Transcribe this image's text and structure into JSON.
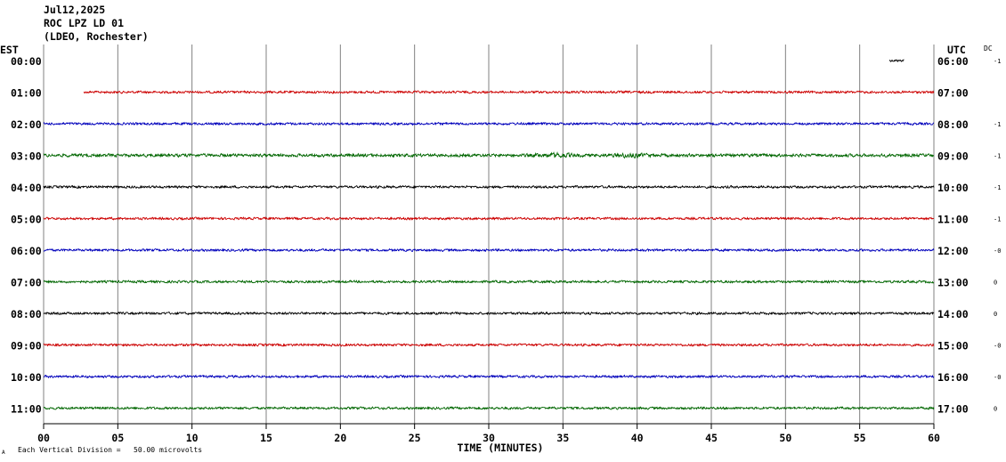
{
  "header": {
    "date": "Jul12,2025",
    "station": "ROC LPZ LD 01",
    "network": "(LDEO, Rochester)"
  },
  "left_timezone": "EST",
  "right_timezone": "UTC",
  "dc_label": "DC",
  "footer": {
    "corner_mark": "A",
    "scale_note": "Each Vertical Division =   50.00 microvolts"
  },
  "colors": {
    "trace_cycle": [
      "#000000",
      "#cc0000",
      "#0000bb",
      "#006600"
    ],
    "grid": "#808080",
    "text": "#000000"
  },
  "chart_data": {
    "type": "line",
    "xlabel": "TIME (MINUTES)",
    "xlim": [
      0,
      60
    ],
    "x_ticks": [
      "00",
      "05",
      "10",
      "15",
      "20",
      "25",
      "30",
      "35",
      "40",
      "45",
      "50",
      "55",
      "60"
    ],
    "rows": [
      {
        "est": "00:00",
        "utc": "06:00",
        "dc": "-1",
        "color": "#000000",
        "start_min": 57.0,
        "end_min": 58.0,
        "amplitude": 1.0
      },
      {
        "est": "01:00",
        "utc": "07:00",
        "dc": "",
        "color": "#cc0000",
        "start_min": 2.7,
        "end_min": 60,
        "amplitude": 1.0
      },
      {
        "est": "02:00",
        "utc": "08:00",
        "dc": "-1",
        "color": "#0000bb",
        "start_min": 0,
        "end_min": 60,
        "amplitude": 1.0
      },
      {
        "est": "03:00",
        "utc": "09:00",
        "dc": "-1",
        "color": "#006600",
        "start_min": 0,
        "end_min": 60,
        "amplitude": 1.3,
        "bursts": [
          {
            "center_min": 34.5,
            "width_min": 2.5,
            "gain": 1.8
          },
          {
            "center_min": 39.5,
            "width_min": 2.0,
            "gain": 1.8
          }
        ]
      },
      {
        "est": "04:00",
        "utc": "10:00",
        "dc": "-1",
        "color": "#000000",
        "start_min": 0,
        "end_min": 60,
        "amplitude": 1.0
      },
      {
        "est": "05:00",
        "utc": "11:00",
        "dc": "-1",
        "color": "#cc0000",
        "start_min": 0,
        "end_min": 60,
        "amplitude": 1.0
      },
      {
        "est": "06:00",
        "utc": "12:00",
        "dc": "-0",
        "color": "#0000bb",
        "start_min": 0,
        "end_min": 60,
        "amplitude": 1.0
      },
      {
        "est": "07:00",
        "utc": "13:00",
        "dc": "0",
        "color": "#006600",
        "start_min": 0,
        "end_min": 60,
        "amplitude": 1.0
      },
      {
        "est": "08:00",
        "utc": "14:00",
        "dc": "0",
        "color": "#000000",
        "start_min": 0,
        "end_min": 60,
        "amplitude": 1.0
      },
      {
        "est": "09:00",
        "utc": "15:00",
        "dc": "-0",
        "color": "#cc0000",
        "start_min": 0,
        "end_min": 60,
        "amplitude": 1.0
      },
      {
        "est": "10:00",
        "utc": "16:00",
        "dc": "-0",
        "color": "#0000bb",
        "start_min": 0,
        "end_min": 60,
        "amplitude": 1.0
      },
      {
        "est": "11:00",
        "utc": "17:00",
        "dc": "0",
        "color": "#006600",
        "start_min": 0,
        "end_min": 60,
        "amplitude": 1.0
      }
    ]
  }
}
